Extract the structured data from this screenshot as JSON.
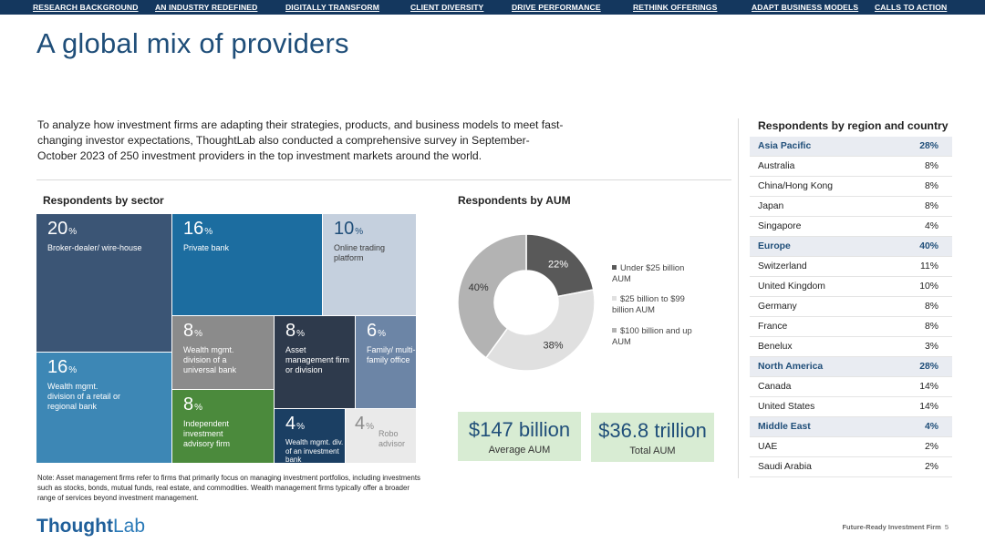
{
  "nav": [
    "RESEARCH BACKGROUND",
    "AN INDUSTRY REDEFINED",
    "DIGITALLY TRANSFORM",
    "CLIENT DIVERSITY",
    "DRIVE PERFORMANCE",
    "RETHINK OFFERINGS",
    "ADAPT BUSINESS MODELS",
    "CALLS TO ACTION"
  ],
  "title": "A global mix of providers",
  "intro": "To analyze how investment firms are adapting their strategies, products, and business models to meet fast-changing investor expectations, ThoughtLab also conducted a comprehensive survey in September-October 2023 of 250 investment providers in the top investment markets around the world.",
  "sector": {
    "heading": "Respondents by sector",
    "tiles": [
      {
        "value": "20",
        "label": "Broker-dealer/ wire-house",
        "color": "#3b5575"
      },
      {
        "value": "16",
        "label": "Private bank",
        "color": "#1c6da0"
      },
      {
        "value": "10",
        "label": "Online trading platform",
        "color": "#c5d0de"
      },
      {
        "value": "16",
        "label": "Wealth mgmt. division of a retail or regional bank",
        "color": "#3d87b5"
      },
      {
        "value": "8",
        "label": "Wealth mgmt. division of a universal bank",
        "color": "#8b8b8b"
      },
      {
        "value": "8",
        "label": "Asset management firm or division",
        "color": "#2e3a4c"
      },
      {
        "value": "6",
        "label": "Family/ multi-family office",
        "color": "#6c85a6"
      },
      {
        "value": "8",
        "label": "Independent investment advisory firm",
        "color": "#4b8a3c"
      },
      {
        "value": "4",
        "label": "Wealth mgmt. div. of an investment bank",
        "color": "#1b3f63"
      },
      {
        "value": "4",
        "label": "Robo advisor",
        "color": "#eaeaea"
      }
    ]
  },
  "aum": {
    "heading": "Respondents by AUM",
    "slices": [
      {
        "value": 22,
        "label": "22%",
        "legend": "Under $25 billion AUM",
        "color": "#595959"
      },
      {
        "value": 38,
        "label": "38%",
        "legend": "$25 billion to $99 billion AUM",
        "color": "#e0e0e0"
      },
      {
        "value": 40,
        "label": "40%",
        "legend": "$100 billion and up AUM",
        "color": "#b3b3b3"
      }
    ],
    "stats": [
      {
        "big": "$147 billion",
        "small": "Average AUM"
      },
      {
        "big": "$36.8 trillion",
        "small": "Total AUM"
      }
    ]
  },
  "region": {
    "heading": "Respondents by region and country",
    "rows": [
      {
        "name": "Asia Pacific",
        "value": "28%",
        "header": true
      },
      {
        "name": "Australia",
        "value": "8%",
        "header": false
      },
      {
        "name": "China/Hong Kong",
        "value": "8%",
        "header": false
      },
      {
        "name": "Japan",
        "value": "8%",
        "header": false
      },
      {
        "name": "Singapore",
        "value": "4%",
        "header": false
      },
      {
        "name": "Europe",
        "value": "40%",
        "header": true
      },
      {
        "name": "Switzerland",
        "value": "11%",
        "header": false
      },
      {
        "name": "United Kingdom",
        "value": "10%",
        "header": false
      },
      {
        "name": "Germany",
        "value": "8%",
        "header": false
      },
      {
        "name": "France",
        "value": "8%",
        "header": false
      },
      {
        "name": "Benelux",
        "value": "3%",
        "header": false
      },
      {
        "name": "North America",
        "value": "28%",
        "header": true
      },
      {
        "name": "Canada",
        "value": "14%",
        "header": false
      },
      {
        "name": "United States",
        "value": "14%",
        "header": false
      },
      {
        "name": "Middle East",
        "value": "4%",
        "header": true
      },
      {
        "name": "UAE",
        "value": "2%",
        "header": false
      },
      {
        "name": "Saudi Arabia",
        "value": "2%",
        "header": false
      }
    ]
  },
  "note": "Note: Asset management firms refer to firms that primarily focus on managing investment portfolios, including investments such as stocks, bonds, mutual funds, real estate, and commodities. Wealth management firms typically offer a broader range of services beyond investment management.",
  "logo": {
    "bold": "Thought",
    "light": "Lab"
  },
  "footer": {
    "text": "Future-Ready Investment Firm",
    "page": "5"
  },
  "pct_symbol": "%"
}
